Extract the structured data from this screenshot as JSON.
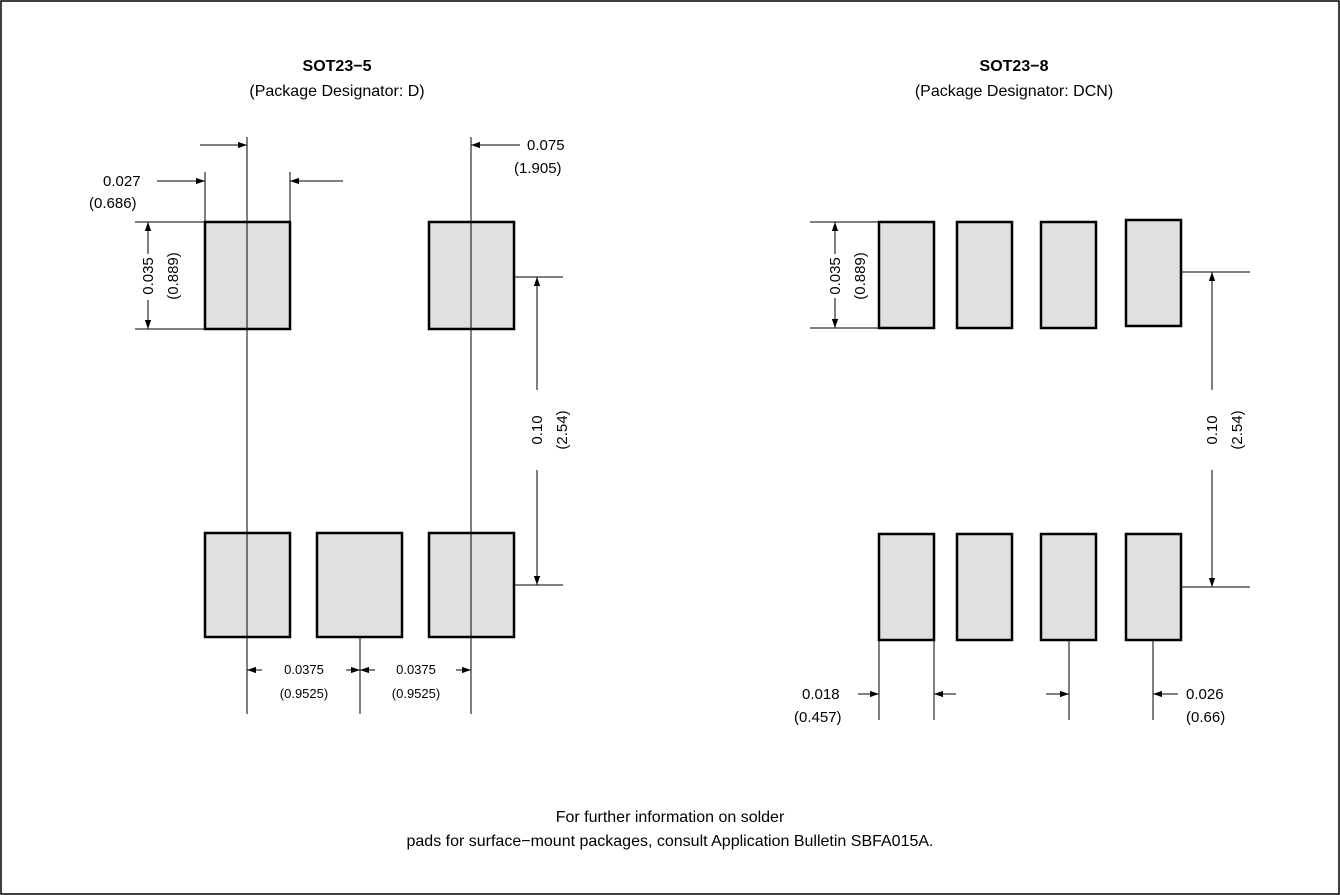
{
  "left": {
    "title": "SOT23−5",
    "subtitle": "(Package Designator: D)",
    "dims": {
      "pad_width_in": "0.027",
      "pad_width_mm": "(0.686)",
      "pitch2_in": "0.075",
      "pitch2_mm": "(1.905)",
      "pad_height_in": "0.035",
      "pad_height_mm": "(0.889)",
      "row_span_in": "0.10",
      "row_span_mm": "(2.54)",
      "pitch_a_in": "0.0375",
      "pitch_a_mm": "(0.9525)",
      "pitch_b_in": "0.0375",
      "pitch_b_mm": "(0.9525)"
    }
  },
  "right": {
    "title": "SOT23−8",
    "subtitle": "(Package Designator: DCN)",
    "dims": {
      "pad_height_in": "0.035",
      "pad_height_mm": "(0.889)",
      "row_span_in": "0.10",
      "row_span_mm": "(2.54)",
      "pad_width_in": "0.018",
      "pad_width_mm": "(0.457)",
      "pitch_in": "0.026",
      "pitch_mm": "(0.66)"
    }
  },
  "footnote": {
    "line1": "For further information on solder",
    "line2": "pads for surface−mount packages, consult Application Bulletin SBFA015A."
  }
}
